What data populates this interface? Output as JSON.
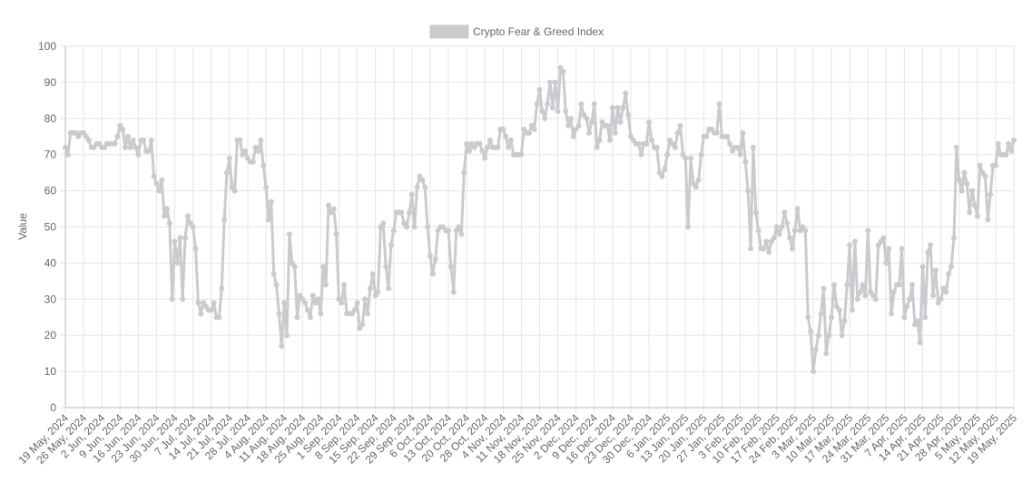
{
  "chart_data": {
    "type": "line",
    "y_label": "Value",
    "legend": "top",
    "grid": true,
    "ylim": [
      0,
      100
    ],
    "yticks": [
      0,
      10,
      20,
      30,
      40,
      50,
      60,
      70,
      80,
      90,
      100
    ],
    "categories": [
      "19 May, 2024",
      null,
      null,
      null,
      null,
      null,
      null,
      "26 May, 2024",
      null,
      null,
      null,
      null,
      null,
      null,
      "2 Jun, 2024",
      null,
      null,
      null,
      null,
      null,
      null,
      "9 Jun, 2024",
      null,
      null,
      null,
      null,
      null,
      null,
      "16 Jun, 2024",
      null,
      null,
      null,
      null,
      null,
      null,
      "23 Jun, 2024",
      null,
      null,
      null,
      null,
      null,
      null,
      "30 Jun, 2024",
      null,
      null,
      null,
      null,
      null,
      null,
      "7 Jul, 2024",
      null,
      null,
      null,
      null,
      null,
      null,
      "14 Jul, 2024",
      null,
      null,
      null,
      null,
      null,
      null,
      "21 Jul, 2024",
      null,
      null,
      null,
      null,
      null,
      null,
      "28 Jul, 2024",
      null,
      null,
      null,
      null,
      null,
      null,
      "4 Aug, 2024",
      null,
      null,
      null,
      null,
      null,
      null,
      "11 Aug, 2024",
      null,
      null,
      null,
      null,
      null,
      null,
      "18 Aug, 2024",
      null,
      null,
      null,
      null,
      null,
      null,
      "25 Aug, 2024",
      null,
      null,
      null,
      null,
      null,
      null,
      "1 Sep, 2024",
      null,
      null,
      null,
      null,
      null,
      null,
      "8 Sep, 2024",
      null,
      null,
      null,
      null,
      null,
      null,
      "15 Sep, 2024",
      null,
      null,
      null,
      null,
      null,
      null,
      "22 Sep, 2024",
      null,
      null,
      null,
      null,
      null,
      null,
      "29 Sep, 2024",
      null,
      null,
      null,
      null,
      null,
      null,
      "6 Oct, 2024",
      null,
      null,
      null,
      null,
      null,
      null,
      "13 Oct, 2024",
      null,
      null,
      null,
      null,
      null,
      null,
      "20 Oct, 2024",
      null,
      null,
      null,
      null,
      null,
      null,
      "28 Oct, 2024",
      null,
      null,
      null,
      null,
      null,
      null,
      "4 Nov, 2024",
      null,
      null,
      null,
      null,
      null,
      null,
      "11 Nov, 2024",
      null,
      null,
      null,
      null,
      null,
      null,
      "18 Nov, 2024",
      null,
      null,
      null,
      null,
      null,
      null,
      "25 Nov, 2024",
      null,
      null,
      null,
      null,
      null,
      null,
      "2 Dec, 2024",
      null,
      null,
      null,
      null,
      null,
      null,
      "9 Dec, 2024",
      null,
      null,
      null,
      null,
      null,
      null,
      "16 Dec, 2024",
      null,
      null,
      null,
      null,
      null,
      null,
      "23 Dec, 2024",
      null,
      null,
      null,
      null,
      null,
      null,
      "30 Dec, 2024",
      null,
      null,
      null,
      null,
      null,
      null,
      "6 Jan, 2025",
      null,
      null,
      null,
      null,
      null,
      null,
      "13 Jan, 2025",
      null,
      null,
      null,
      null,
      null,
      null,
      "20 Jan, 2025",
      null,
      null,
      null,
      null,
      null,
      null,
      "27 Jan, 2025",
      null,
      null,
      null,
      null,
      null,
      null,
      "3 Feb, 2025",
      null,
      null,
      null,
      null,
      null,
      null,
      "10 Feb, 2025",
      null,
      null,
      null,
      null,
      null,
      null,
      "17 Feb, 2025",
      null,
      null,
      null,
      null,
      null,
      null,
      "24 Feb, 2025",
      null,
      null,
      null,
      null,
      null,
      null,
      "3 Mar, 2025",
      null,
      null,
      null,
      null,
      null,
      null,
      "10 Mar, 2025",
      null,
      null,
      null,
      null,
      null,
      null,
      "17 Mar, 2025",
      null,
      null,
      null,
      null,
      null,
      null,
      "24 Mar, 2025",
      null,
      null,
      null,
      null,
      null,
      null,
      "31 Mar, 2025",
      null,
      null,
      null,
      null,
      null,
      null,
      "7 Apr, 2025",
      null,
      null,
      null,
      null,
      null,
      null,
      "14 Apr, 2025",
      null,
      null,
      null,
      null,
      null,
      null,
      "21 Apr, 2025",
      null,
      null,
      null,
      null,
      null,
      null,
      "28 Apr, 2025",
      null,
      null,
      null,
      null,
      null,
      null,
      "5 May, 2025",
      null,
      null,
      null,
      null,
      null,
      null,
      "12 May, 2025",
      null,
      null,
      null,
      null,
      null,
      null,
      "19 May, 2025"
    ],
    "series": [
      {
        "name": "Crypto Fear & Greed Index",
        "color": "#c9cbcf",
        "values": [
          72,
          70,
          76,
          76,
          76,
          75,
          76,
          76,
          75,
          74,
          72,
          72,
          73,
          73,
          72,
          72,
          73,
          73,
          73,
          73,
          75,
          78,
          77,
          72,
          75,
          72,
          74,
          72,
          70,
          74,
          74,
          71,
          71,
          74,
          64,
          62,
          60,
          63,
          53,
          55,
          51,
          30,
          46,
          40,
          47,
          30,
          47,
          53,
          51,
          50,
          44,
          29,
          26,
          29,
          28,
          27,
          27,
          29,
          25,
          25,
          33,
          52,
          65,
          69,
          61,
          60,
          74,
          74,
          70,
          71,
          69,
          68,
          68,
          72,
          71,
          74,
          67,
          61,
          52,
          57,
          37,
          34,
          26,
          17,
          29,
          20,
          48,
          40,
          39,
          25,
          31,
          30,
          29,
          27,
          25,
          31,
          29,
          30,
          26,
          39,
          34,
          56,
          54,
          55,
          48,
          30,
          29,
          34,
          26,
          26,
          26,
          27,
          29,
          22,
          23,
          30,
          26,
          33,
          37,
          31,
          32,
          50,
          51,
          39,
          33,
          45,
          49,
          54,
          54,
          54,
          51,
          50,
          54,
          59,
          50,
          61,
          64,
          63,
          61,
          50,
          42,
          37,
          41,
          49,
          50,
          50,
          49,
          49,
          39,
          32,
          49,
          50,
          48,
          65,
          73,
          71,
          73,
          72,
          73,
          73,
          71,
          69,
          72,
          74,
          72,
          72,
          72,
          77,
          77,
          75,
          72,
          74,
          70,
          70,
          70,
          70,
          77,
          76,
          76,
          78,
          77,
          84,
          88,
          82,
          80,
          84,
          90,
          83,
          90,
          82,
          94,
          93,
          82,
          78,
          80,
          75,
          77,
          78,
          84,
          81,
          80,
          76,
          79,
          84,
          72,
          74,
          79,
          78,
          78,
          74,
          83,
          76,
          83,
          79,
          83,
          87,
          81,
          75,
          74,
          73,
          73,
          70,
          73,
          73,
          79,
          74,
          72,
          72,
          65,
          64,
          66,
          70,
          74,
          73,
          72,
          76,
          78,
          70,
          69,
          50,
          69,
          62,
          61,
          63,
          70,
          75,
          75,
          77,
          77,
          76,
          76,
          84,
          75,
          75,
          75,
          73,
          71,
          72,
          72,
          70,
          76,
          68,
          60,
          44,
          72,
          54,
          49,
          44,
          44,
          46,
          43,
          46,
          47,
          50,
          48,
          50,
          54,
          51,
          47,
          44,
          49,
          55,
          49,
          50,
          49,
          25,
          21,
          10,
          16,
          20,
          26,
          33,
          15,
          20,
          25,
          34,
          28,
          27,
          20,
          24,
          34,
          45,
          27,
          46,
          30,
          32,
          34,
          31,
          49,
          32,
          31,
          30,
          45,
          46,
          47,
          40,
          44,
          26,
          32,
          34,
          34,
          44,
          25,
          28,
          30,
          34,
          23,
          24,
          18,
          39,
          25,
          43,
          45,
          31,
          38,
          29,
          30,
          33,
          32,
          37,
          39,
          47,
          72,
          63,
          60,
          65,
          62,
          54,
          60,
          56,
          53,
          67,
          65,
          64,
          52,
          59,
          67,
          67,
          73,
          70,
          70,
          70,
          73,
          71,
          74
        ]
      }
    ]
  }
}
